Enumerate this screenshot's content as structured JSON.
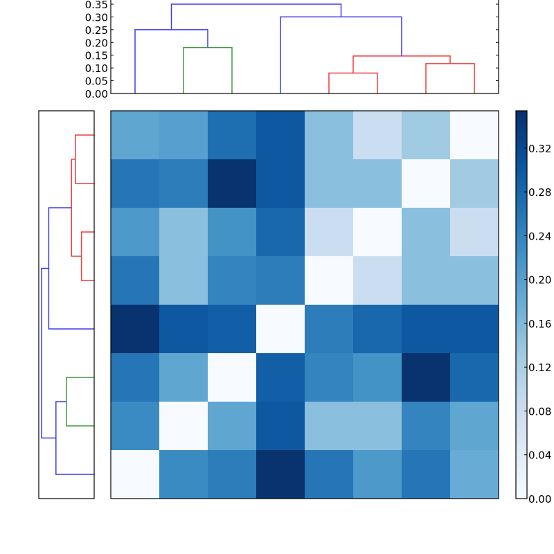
{
  "chart_data": [
    {
      "type": "heatmap",
      "title": "",
      "xlabel": "",
      "ylabel": "",
      "rows": 8,
      "cols": 8,
      "colormap": "Blues",
      "vmin": 0.0,
      "vmax": 0.354,
      "values": [
        [
          0.19,
          0.2,
          0.27,
          0.3,
          0.15,
          0.08,
          0.13,
          0.0
        ],
        [
          0.26,
          0.25,
          0.35,
          0.3,
          0.15,
          0.15,
          0.0,
          0.13
        ],
        [
          0.21,
          0.15,
          0.22,
          0.28,
          0.08,
          0.0,
          0.15,
          0.08
        ],
        [
          0.26,
          0.15,
          0.24,
          0.25,
          0.0,
          0.08,
          0.15,
          0.15
        ],
        [
          0.35,
          0.3,
          0.29,
          0.0,
          0.25,
          0.28,
          0.3,
          0.3
        ],
        [
          0.26,
          0.19,
          0.0,
          0.29,
          0.24,
          0.22,
          0.35,
          0.28
        ],
        [
          0.23,
          0.0,
          0.19,
          0.3,
          0.15,
          0.15,
          0.24,
          0.19
        ],
        [
          0.0,
          0.23,
          0.25,
          0.35,
          0.26,
          0.21,
          0.26,
          0.18
        ]
      ],
      "colorbar": {
        "ticks": [
          "0.00",
          "0.04",
          "0.08",
          "0.12",
          "0.16",
          "0.20",
          "0.24",
          "0.28",
          "0.32"
        ],
        "tick_values": [
          0.0,
          0.04,
          0.08,
          0.12,
          0.16,
          0.2,
          0.24,
          0.28,
          0.32
        ],
        "range": [
          0.0,
          0.354
        ]
      }
    },
    {
      "type": "dendrogram",
      "orientation": "top",
      "ylim": [
        0.0,
        0.36
      ],
      "yticks": [
        "0.00",
        "0.05",
        "0.10",
        "0.15",
        "0.20",
        "0.25",
        "0.30",
        "0.35"
      ],
      "ytick_values": [
        0.0,
        0.05,
        0.1,
        0.15,
        0.2,
        0.25,
        0.3,
        0.35
      ],
      "leaf_count": 8,
      "links": [
        {
          "left_x": 1.5,
          "right_x": 2.5,
          "height": 0.18,
          "left_h": 0.0,
          "right_h": 0.0,
          "color": "#3f9a3f"
        },
        {
          "left_x": 0.5,
          "right_x": 2.0,
          "height": 0.25,
          "left_h": 0.0,
          "right_h": 0.18,
          "color": "#3a3af0"
        },
        {
          "left_x": 4.5,
          "right_x": 5.5,
          "height": 0.08,
          "left_h": 0.0,
          "right_h": 0.0,
          "color": "#f03a3a"
        },
        {
          "left_x": 6.5,
          "right_x": 7.5,
          "height": 0.117,
          "left_h": 0.0,
          "right_h": 0.0,
          "color": "#f03a3a"
        },
        {
          "left_x": 5.0,
          "right_x": 7.0,
          "height": 0.147,
          "left_h": 0.08,
          "right_h": 0.117,
          "color": "#f03a3a"
        },
        {
          "left_x": 3.5,
          "right_x": 6.0,
          "height": 0.3,
          "left_h": 0.0,
          "right_h": 0.147,
          "color": "#3a3af0"
        },
        {
          "left_x": 1.25,
          "right_x": 4.75,
          "height": 0.35,
          "left_h": 0.25,
          "right_h": 0.3,
          "color": "#3a3af0"
        }
      ]
    },
    {
      "type": "dendrogram",
      "orientation": "left",
      "leaf_count": 8,
      "links": [
        {
          "top_y": 0.5,
          "bottom_y": 1.5,
          "depth": 0.34,
          "top_d": 0.0,
          "bottom_d": 0.0,
          "color": "#f03a3a"
        },
        {
          "top_y": 2.5,
          "bottom_y": 3.5,
          "depth": 0.23,
          "top_d": 0.0,
          "bottom_d": 0.0,
          "color": "#f03a3a"
        },
        {
          "top_y": 1.0,
          "bottom_y": 3.0,
          "depth": 0.41,
          "top_d": 0.34,
          "bottom_d": 0.23,
          "color": "#f03a3a"
        },
        {
          "top_y": 2.0,
          "bottom_y": 4.5,
          "depth": 0.82,
          "top_d": 0.41,
          "bottom_d": 0.0,
          "color": "#3a3af0"
        },
        {
          "top_y": 5.5,
          "bottom_y": 6.5,
          "depth": 0.5,
          "top_d": 0.0,
          "bottom_d": 0.0,
          "color": "#3f9a3f"
        },
        {
          "top_y": 6.0,
          "bottom_y": 7.5,
          "depth": 0.69,
          "top_d": 0.5,
          "bottom_d": 0.0,
          "color": "#3a3af0"
        },
        {
          "top_y": 3.25,
          "bottom_y": 6.75,
          "depth": 0.95,
          "top_d": 0.82,
          "bottom_d": 0.69,
          "color": "#3a3af0"
        }
      ]
    }
  ],
  "colors": {
    "cluster_red": "#f03a3a",
    "cluster_green": "#3f9a3f",
    "above_threshold_blue": "#3a3af0",
    "frame": "#000000"
  }
}
